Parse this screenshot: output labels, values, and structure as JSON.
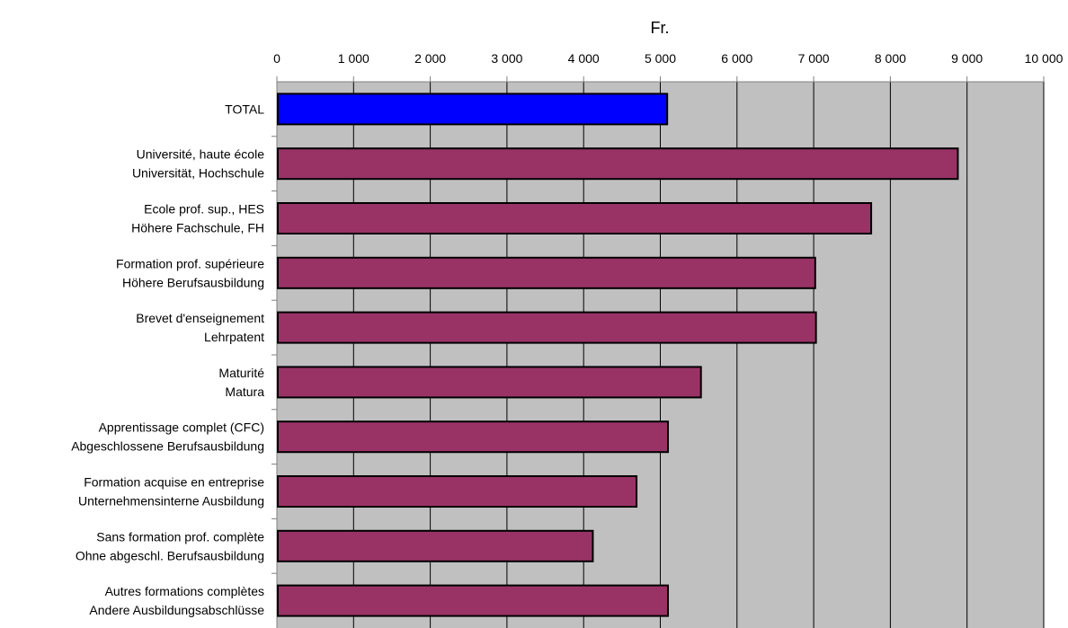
{
  "chart_data": {
    "type": "bar",
    "orientation": "horizontal",
    "xlabel": "Fr.",
    "xlim": [
      0,
      10000
    ],
    "x_ticks": [
      "0",
      "1 000",
      "2 000",
      "3 000",
      "4 000",
      "5 000",
      "6 000",
      "7 000",
      "8 000",
      "9 000",
      "10 000"
    ],
    "x_tick_values": [
      0,
      1000,
      2000,
      3000,
      4000,
      5000,
      6000,
      7000,
      8000,
      9000,
      10000
    ],
    "grid": true,
    "plot_background": "#c0c0c0",
    "colors": {
      "total": "#0000ff",
      "default": "#993366"
    },
    "categories": [
      {
        "lines": [
          "TOTAL"
        ],
        "value": 5090,
        "color": "#0000ff"
      },
      {
        "lines": [
          "Université, haute école",
          "Universität, Hochschule"
        ],
        "value": 8880,
        "color": "#993366"
      },
      {
        "lines": [
          "Ecole prof. sup., HES",
          "Höhere Fachschule, FH"
        ],
        "value": 7750,
        "color": "#993366"
      },
      {
        "lines": [
          "Formation prof. supérieure",
          "Höhere Berufsausbildung"
        ],
        "value": 7020,
        "color": "#993366"
      },
      {
        "lines": [
          "Brevet d'enseignement",
          "Lehrpatent"
        ],
        "value": 7030,
        "color": "#993366"
      },
      {
        "lines": [
          "Maturité",
          "Matura"
        ],
        "value": 5530,
        "color": "#993366"
      },
      {
        "lines": [
          "Apprentissage complet (CFC)",
          "Abgeschlossene Berufsausbildung"
        ],
        "value": 5100,
        "color": "#993366"
      },
      {
        "lines": [
          "Formation acquise en entreprise",
          "Unternehmensinterne Ausbildung"
        ],
        "value": 4690,
        "color": "#993366"
      },
      {
        "lines": [
          "Sans formation prof. complète",
          "Ohne abgeschl. Berufsausbildung"
        ],
        "value": 4120,
        "color": "#993366"
      },
      {
        "lines": [
          "Autres formations complètes",
          "Andere Ausbildungsabschlüsse"
        ],
        "value": 5100,
        "color": "#993366"
      }
    ]
  }
}
